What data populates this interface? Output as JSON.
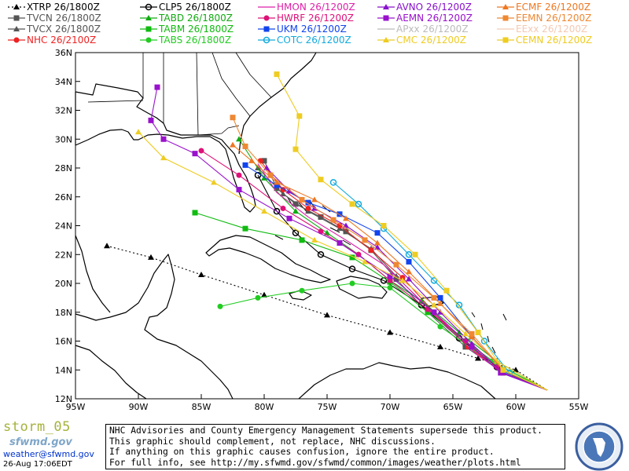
{
  "legend": [
    {
      "label": "XTRP 26/1800Z",
      "color": "#000000",
      "marker": "triangle",
      "dash": "2,3"
    },
    {
      "label": "TVCN 26/1800Z",
      "color": "#555555",
      "marker": "square"
    },
    {
      "label": "TVCX 26/1800Z",
      "color": "#555555",
      "marker": "triangle"
    },
    {
      "label": "NHC 26/2100Z",
      "color": "#ee2222",
      "marker": "circle"
    },
    {
      "label": "CLP5 26/1800Z",
      "color": "#000000",
      "marker": "clp"
    },
    {
      "label": "TABD 26/1800Z",
      "color": "#11aa11",
      "marker": "triangle"
    },
    {
      "label": "TABM 26/1800Z",
      "color": "#11bb11",
      "marker": "square"
    },
    {
      "label": "TABS 26/1800Z",
      "color": "#22cc22",
      "marker": "circle"
    },
    {
      "label": "HMON 26/1200Z",
      "color": "#dd22aa",
      "marker": "dash"
    },
    {
      "label": "HWRF 26/1200Z",
      "color": "#dd1177",
      "marker": "circle"
    },
    {
      "label": "UKM 26/1200Z",
      "color": "#1144ee",
      "marker": "square"
    },
    {
      "label": "COTC 26/1200Z",
      "color": "#11aadd",
      "marker": "ring"
    },
    {
      "label": "AVNO 26/1200Z",
      "color": "#8811cc",
      "marker": "triangle"
    },
    {
      "label": "AEMN 26/1200Z",
      "color": "#9911cc",
      "marker": "square"
    },
    {
      "label": "APxx 26/1200Z",
      "color": "#bbbbbb",
      "marker": "line"
    },
    {
      "label": "CMC 26/1200Z",
      "color": "#eecc22",
      "marker": "triangle"
    },
    {
      "label": "ECMF 26/1200Z",
      "color": "#ee7722",
      "marker": "triangle"
    },
    {
      "label": "EEMN 26/1200Z",
      "color": "#ee8833",
      "marker": "square"
    },
    {
      "label": "EExx 26/1200Z",
      "color": "#f4c9b3",
      "marker": "line"
    },
    {
      "label": "CEMN 26/1200Z",
      "color": "#eecc22",
      "marker": "square"
    }
  ],
  "map": {
    "lat_labels": [
      "12N",
      "14N",
      "16N",
      "18N",
      "20N",
      "22N",
      "24N",
      "26N",
      "28N",
      "30N",
      "32N",
      "34N",
      "36N"
    ],
    "lon_labels": [
      "95W",
      "90W",
      "85W",
      "80W",
      "75W",
      "70W",
      "65W",
      "60W",
      "55W"
    ],
    "lat_range": [
      12,
      36
    ],
    "lon_range": [
      -95,
      -55
    ]
  },
  "footer": {
    "storm_name": "storm_05",
    "site_logo": "sfwmd.gov",
    "email": "weather@sfwmd.gov",
    "timestamp": "26-Aug 17:06EDT",
    "disclaimer": [
      "NHC Advisories and County Emergency Management Statements supersede this product.",
      "This graphic should complement, not replace, NHC discussions.",
      "If anything on this graphic causes confusion, ignore the entire product.",
      "For full info, see  http://my.sfwmd.gov/sfwmd/common/images/weather/plots.html"
    ]
  }
}
